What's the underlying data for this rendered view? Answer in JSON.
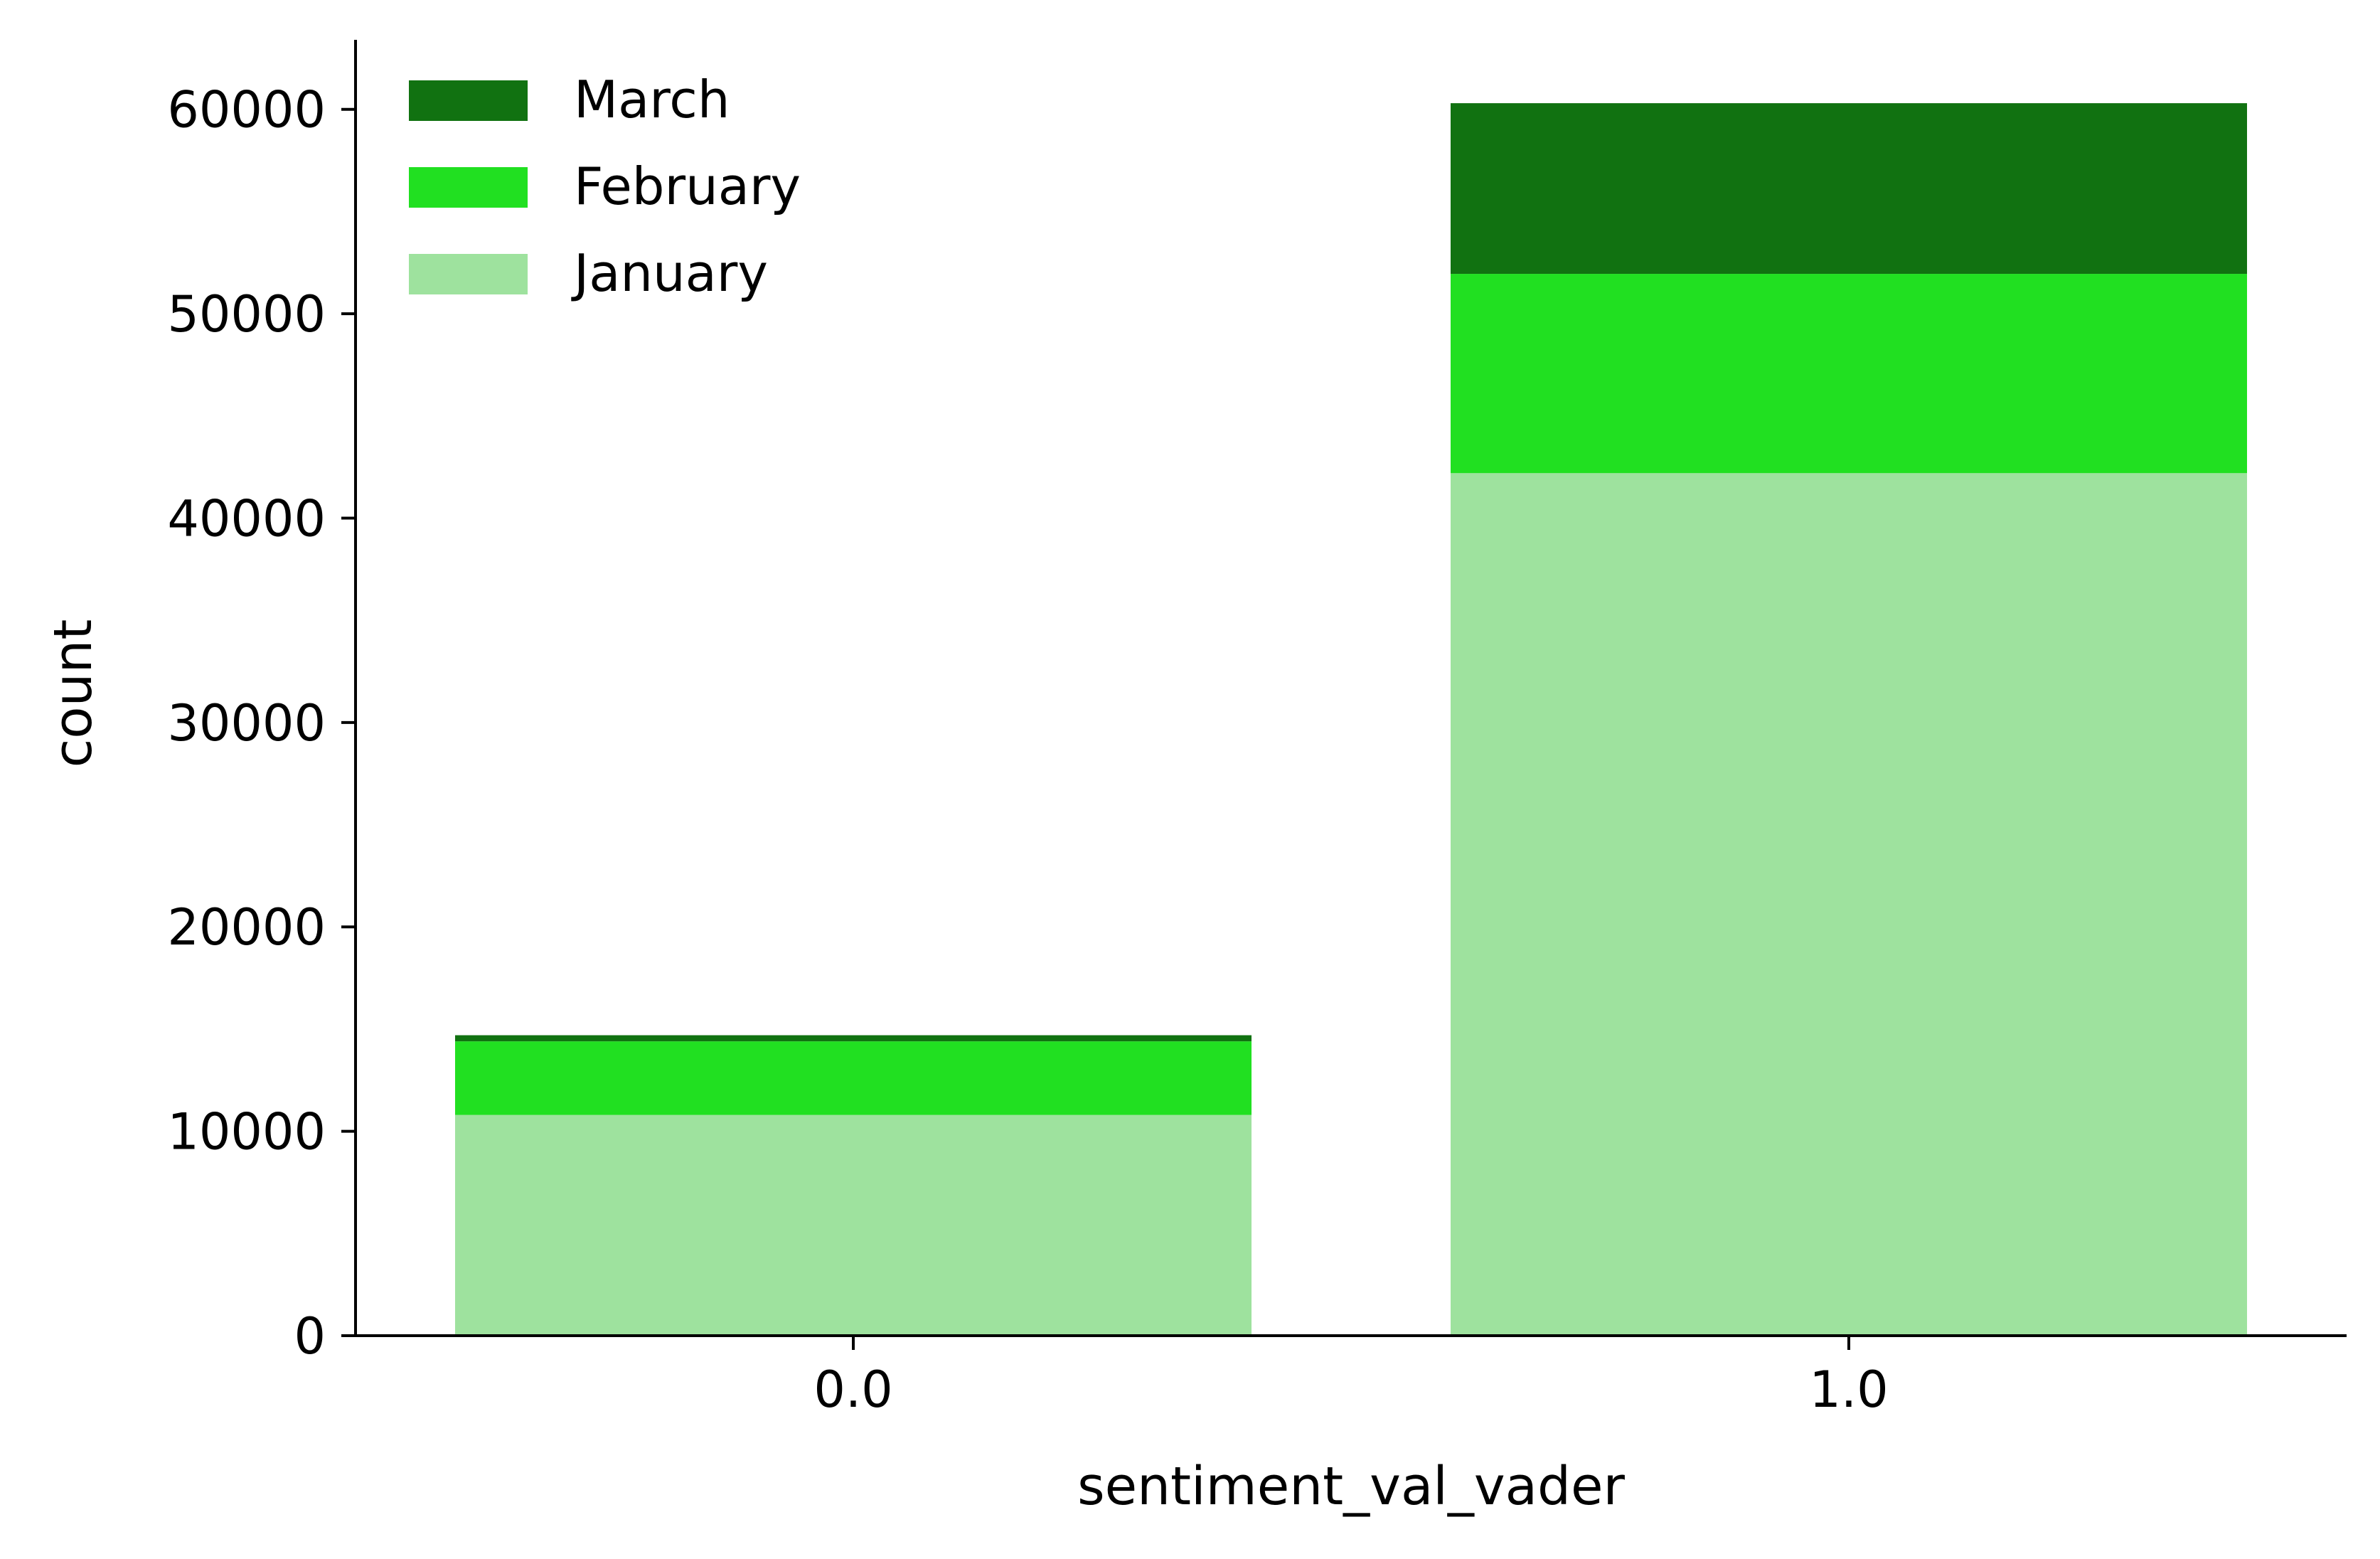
{
  "chart_data": {
    "type": "bar",
    "stacked": true,
    "title": "",
    "xlabel": "sentiment_val_vader",
    "ylabel": "count",
    "categories": [
      "0.0",
      "1.0"
    ],
    "ylim": [
      0,
      63400
    ],
    "yticks": [
      0,
      10000,
      20000,
      30000,
      40000,
      50000,
      60000
    ],
    "ytick_labels": [
      "0",
      "10000",
      "20000",
      "30000",
      "40000",
      "50000",
      "60000"
    ],
    "grid": false,
    "legend_position": "top-left",
    "series": [
      {
        "name": "January",
        "color": "#9ee29e",
        "values": [
          10800,
          42200
        ]
      },
      {
        "name": "February",
        "color": "#21e021",
        "values": [
          3600,
          9750
        ]
      },
      {
        "name": "March",
        "color": "#117211",
        "values": [
          300,
          8350
        ]
      }
    ],
    "legend_order": [
      "March",
      "February",
      "January"
    ]
  }
}
